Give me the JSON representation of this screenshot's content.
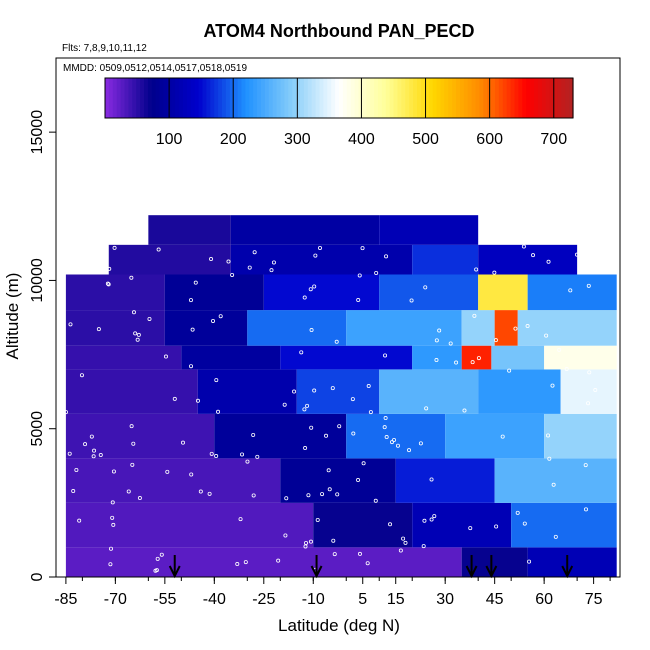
{
  "chart_data": {
    "type": "heatmap",
    "title": "ATOM4 Northbound PAN_PECD",
    "flights_label": "Flts: 7,8,9,10,11,12",
    "dates_label": "MMDD: 0509,0512,0514,0517,0518,0519",
    "xlabel": "Latitude (deg N)",
    "ylabel": "Altitude (m)",
    "xlim": [
      -88,
      83
    ],
    "ylim": [
      0,
      17500
    ],
    "x_ticks": [
      -85,
      -70,
      -55,
      -40,
      -25,
      -10,
      5,
      15,
      30,
      45,
      60,
      75
    ],
    "x_tick_labels": [
      "-85",
      "-70",
      "-55",
      "-40",
      "-25",
      "-10",
      "5",
      "15",
      "30",
      "45",
      "60",
      "75"
    ],
    "y_ticks": [
      0,
      5000,
      10000,
      15000
    ],
    "y_tick_labels": [
      "0",
      "5000",
      "10000",
      "15000"
    ],
    "colorbar": {
      "range": [
        0,
        730
      ],
      "ticks": [
        100,
        200,
        300,
        400,
        500,
        600,
        700
      ],
      "tick_labels": [
        "100",
        "200",
        "300",
        "400",
        "500",
        "600",
        "700"
      ],
      "colors": [
        "#8a2be2",
        "#00008b",
        "#0000cd",
        "#1e90ff",
        "#87cefa",
        "#ffffff",
        "#ffff99",
        "#ffd700",
        "#ff8c00",
        "#ff0000",
        "#b22222"
      ]
    },
    "takeoff_arrows_lat": [
      -52,
      -9,
      38,
      44,
      67
    ],
    "altitude_bands": [
      {
        "y0": 0,
        "y1": 1000,
        "segments": [
          {
            "x0": -85,
            "x1": 35,
            "v": 25
          },
          {
            "x0": 35,
            "x1": 55,
            "v": 70
          },
          {
            "x0": 55,
            "x1": 82,
            "v": 120
          }
        ]
      },
      {
        "y0": 1000,
        "y1": 2500,
        "segments": [
          {
            "x0": -85,
            "x1": -10,
            "v": 30
          },
          {
            "x0": -10,
            "x1": 20,
            "v": 70
          },
          {
            "x0": 20,
            "x1": 50,
            "v": 120
          },
          {
            "x0": 50,
            "x1": 82,
            "v": 200
          }
        ]
      },
      {
        "y0": 2500,
        "y1": 4000,
        "segments": [
          {
            "x0": -85,
            "x1": -20,
            "v": 35
          },
          {
            "x0": -20,
            "x1": 15,
            "v": 85
          },
          {
            "x0": 15,
            "x1": 45,
            "v": 160
          },
          {
            "x0": 45,
            "x1": 82,
            "v": 260
          }
        ]
      },
      {
        "y0": 4000,
        "y1": 5500,
        "segments": [
          {
            "x0": -85,
            "x1": -40,
            "v": 40
          },
          {
            "x0": -40,
            "x1": 0,
            "v": 90
          },
          {
            "x0": 0,
            "x1": 30,
            "v": 200
          },
          {
            "x0": 30,
            "x1": 60,
            "v": 240
          },
          {
            "x0": 60,
            "x1": 82,
            "v": 300
          }
        ]
      },
      {
        "y0": 5500,
        "y1": 7000,
        "segments": [
          {
            "x0": -85,
            "x1": -45,
            "v": 45
          },
          {
            "x0": -45,
            "x1": -15,
            "v": 110
          },
          {
            "x0": -15,
            "x1": 10,
            "v": 180
          },
          {
            "x0": 10,
            "x1": 40,
            "v": 260
          },
          {
            "x0": 40,
            "x1": 65,
            "v": 230
          },
          {
            "x0": 65,
            "x1": 82,
            "v": 350
          }
        ]
      },
      {
        "y0": 7000,
        "y1": 7800,
        "segments": [
          {
            "x0": -85,
            "x1": -50,
            "v": 45
          },
          {
            "x0": -50,
            "x1": -20,
            "v": 95
          },
          {
            "x0": -20,
            "x1": 20,
            "v": 150
          },
          {
            "x0": 20,
            "x1": 35,
            "v": 230
          },
          {
            "x0": 35,
            "x1": 44,
            "v": 640
          },
          {
            "x0": 44,
            "x1": 60,
            "v": 280
          },
          {
            "x0": 60,
            "x1": 82,
            "v": 380
          }
        ]
      },
      {
        "y0": 7800,
        "y1": 9000,
        "segments": [
          {
            "x0": -85,
            "x1": -55,
            "v": 50
          },
          {
            "x0": -55,
            "x1": -30,
            "v": 90
          },
          {
            "x0": -30,
            "x1": 0,
            "v": 200
          },
          {
            "x0": 0,
            "x1": 35,
            "v": 240
          },
          {
            "x0": 35,
            "x1": 45,
            "v": 300
          },
          {
            "x0": 45,
            "x1": 52,
            "v": 620
          },
          {
            "x0": 52,
            "x1": 82,
            "v": 300
          }
        ]
      },
      {
        "y0": 9000,
        "y1": 10200,
        "segments": [
          {
            "x0": -85,
            "x1": -55,
            "v": 50
          },
          {
            "x0": -55,
            "x1": -25,
            "v": 85
          },
          {
            "x0": -25,
            "x1": 10,
            "v": 150
          },
          {
            "x0": 10,
            "x1": 40,
            "v": 190
          },
          {
            "x0": 40,
            "x1": 55,
            "v": 480
          },
          {
            "x0": 55,
            "x1": 82,
            "v": 210
          }
        ]
      },
      {
        "y0": 10200,
        "y1": 11200,
        "segments": [
          {
            "x0": -72,
            "x1": -35,
            "v": 55
          },
          {
            "x0": -35,
            "x1": 20,
            "v": 110
          },
          {
            "x0": 20,
            "x1": 40,
            "v": 170
          },
          {
            "x0": 40,
            "x1": 70,
            "v": 130
          }
        ]
      },
      {
        "y0": 11200,
        "y1": 12200,
        "segments": [
          {
            "x0": -60,
            "x1": -35,
            "v": 60
          },
          {
            "x0": -35,
            "x1": 10,
            "v": 100
          },
          {
            "x0": 10,
            "x1": 40,
            "v": 120
          }
        ]
      }
    ]
  }
}
